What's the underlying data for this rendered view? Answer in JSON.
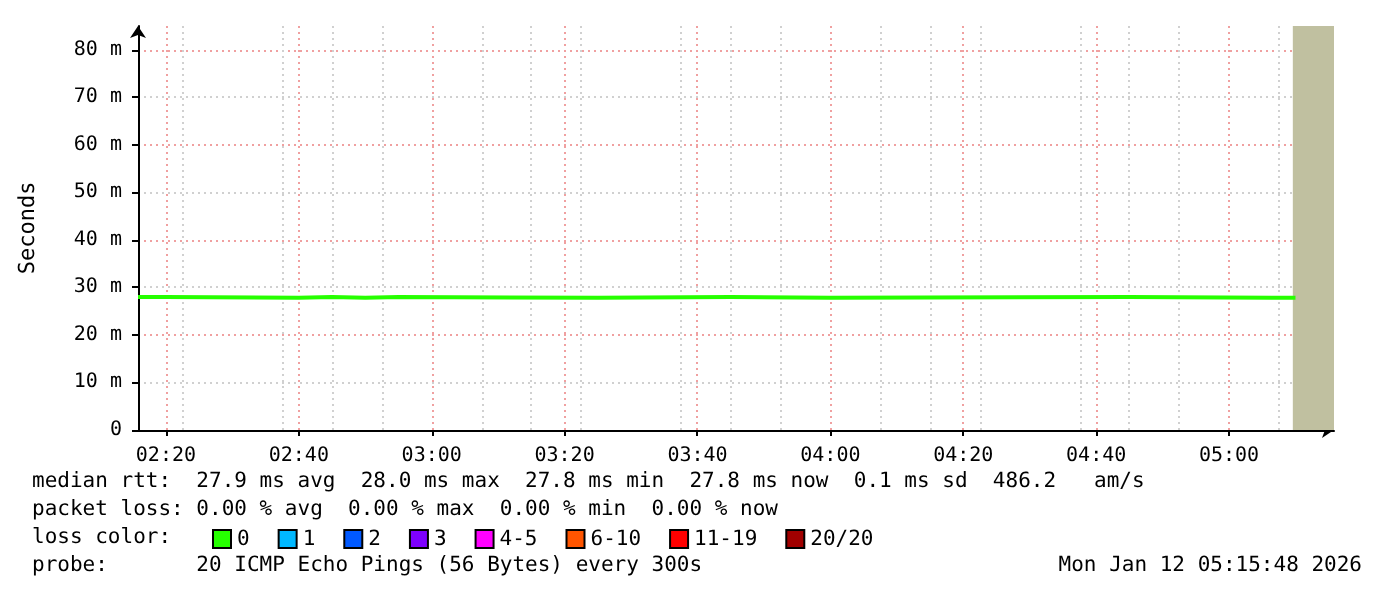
{
  "chart_data": {
    "type": "step",
    "ylabel": "Seconds",
    "legend_title": "loss color:",
    "legend": "bottom",
    "grid": true,
    "marker": "none",
    "x": [
      2.2633,
      2.3333,
      2.6667,
      2.75,
      2.8333,
      2.9167,
      3.4167,
      3.75,
      4.0,
      4.75,
      5.1667
    ],
    "xlim": [
      2.2633,
      5.2633
    ],
    "xticks": [
      {
        "value": 2.3333,
        "label": "02:20"
      },
      {
        "value": 2.6667,
        "label": "02:40"
      },
      {
        "value": 3.0,
        "label": "03:00"
      },
      {
        "value": 3.3333,
        "label": "03:20"
      },
      {
        "value": 3.6667,
        "label": "03:40"
      },
      {
        "value": 4.0,
        "label": "04:00"
      },
      {
        "value": 4.3333,
        "label": "04:20"
      },
      {
        "value": 4.6667,
        "label": "04:40"
      },
      {
        "value": 5.0,
        "label": "05:00"
      }
    ],
    "ylim": [
      0,
      85
    ],
    "yticks": [
      0,
      {
        "value": 10,
        "label": "10 m"
      },
      {
        "value": 20,
        "label": "20 m"
      },
      {
        "value": 30,
        "label": "30 m"
      },
      {
        "value": 40,
        "label": "40 m"
      },
      {
        "value": 50,
        "label": "50 m"
      },
      {
        "value": 60,
        "label": "60 m"
      },
      {
        "value": 70,
        "label": "70 m"
      },
      {
        "value": 80,
        "label": "80 m"
      }
    ],
    "series": [
      {
        "name": "0",
        "color": "#26ff00",
        "values": [
          28.0,
          27.8,
          28.0,
          27.8,
          28.0,
          27.8,
          28.0,
          27.8,
          28.0,
          27.8,
          27.8
        ]
      },
      {
        "name": "1",
        "color": "#00b8ff",
        "values": [
          null,
          null,
          null,
          null,
          null,
          null,
          null,
          null,
          null,
          null,
          null
        ]
      },
      {
        "name": "2",
        "color": "#0059ff",
        "values": [
          null,
          null,
          null,
          null,
          null,
          null,
          null,
          null,
          null,
          null,
          null
        ]
      },
      {
        "name": "3",
        "color": "#7e00ff",
        "values": [
          null,
          null,
          null,
          null,
          null,
          null,
          null,
          null,
          null,
          null,
          null
        ]
      },
      {
        "name": "4-5",
        "color": "#ff00ff",
        "values": [
          null,
          null,
          null,
          null,
          null,
          null,
          null,
          null,
          null,
          null,
          null
        ]
      },
      {
        "name": "6-10",
        "color": "#ff5500",
        "values": [
          null,
          null,
          null,
          null,
          null,
          null,
          null,
          null,
          null,
          null,
          null
        ]
      },
      {
        "name": "11-19",
        "color": "#ff0000",
        "values": [
          null,
          null,
          null,
          null,
          null,
          null,
          null,
          null,
          null,
          null,
          null
        ]
      },
      {
        "name": "20/20",
        "color": "#a10000",
        "values": [
          null,
          null,
          null,
          null,
          null,
          null,
          null,
          null,
          null,
          null,
          null
        ]
      }
    ],
    "bands": [
      {
        "axis": "x",
        "from": 5.16,
        "to": 5.2633,
        "color": "#c0c0a0"
      }
    ],
    "annotations": [
      "median rtt:  27.9 ms avg  28.0 ms max  27.8 ms min  27.8 ms now  0.1 ms sd  486.2   am/s",
      "packet loss: 0.00 % avg  0.00 % max  0.00 % min  0.00 % now",
      "probe:       20 ICMP Echo Pings (56 Bytes) every 300s",
      "Mon Jan 12 05:15:48 2026"
    ]
  }
}
